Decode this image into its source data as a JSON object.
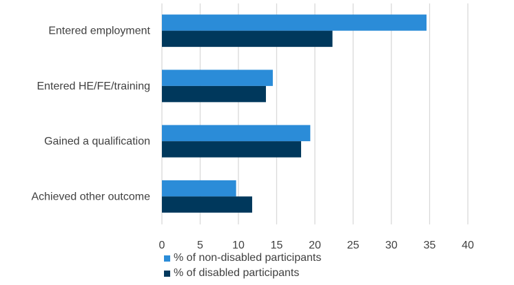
{
  "chart_data": {
    "type": "bar",
    "orientation": "horizontal",
    "categories": [
      "Entered employment",
      "Entered HE/FE/training",
      "Gained a qualification",
      "Achieved other outcome"
    ],
    "series": [
      {
        "name": "% of non-disabled participants",
        "values": [
          34.6,
          14.5,
          19.4,
          9.7
        ],
        "color": "#2b8cd8"
      },
      {
        "name": "% of disabled participants",
        "values": [
          22.3,
          13.6,
          18.2,
          11.8
        ],
        "color": "#00385c"
      }
    ],
    "xlim": [
      0,
      40
    ],
    "xticks": [
      "0",
      "5",
      "10",
      "15",
      "20",
      "25",
      "30",
      "35",
      "40"
    ],
    "grid": true,
    "legend": "bottom"
  }
}
